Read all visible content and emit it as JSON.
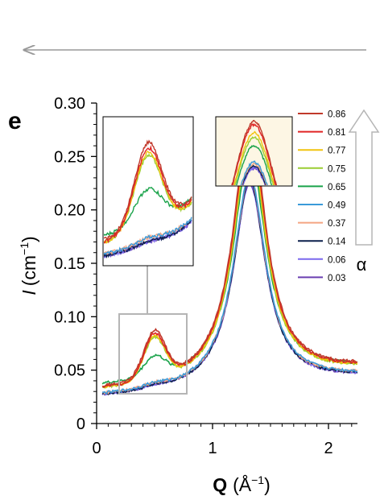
{
  "chart_data": {
    "type": "line",
    "panel_label": "e",
    "xlabel_bold": "Q",
    "xlabel_unit": "(Å",
    "xlabel_unit_exp": "−1",
    "xlabel_unit_close": ")",
    "ylabel_italic": "I",
    "ylabel_unit": "(cm",
    "ylabel_unit_exp": "−1",
    "ylabel_unit_close": ")",
    "xlim": [
      0,
      2.25
    ],
    "ylim": [
      0,
      0.3
    ],
    "xticks": [
      0,
      1,
      2
    ],
    "xtick_labels": [
      "0",
      "1",
      "2"
    ],
    "yticks": [
      0,
      0.05,
      0.1,
      0.15,
      0.2,
      0.25,
      0.3
    ],
    "ytick_labels": [
      "0",
      "0.05",
      "0.10",
      "0.15",
      "0.20",
      "0.25",
      "0.30"
    ],
    "legend_position": "top-right",
    "arrow_label": "α",
    "series": [
      {
        "name": "0.86",
        "color": "#c0392b",
        "hump": 0.048,
        "peak": 0.285,
        "tail": 0.05,
        "low": 0.031
      },
      {
        "name": "0.81",
        "color": "#e02424",
        "hump": 0.046,
        "peak": 0.282,
        "tail": 0.049,
        "low": 0.03
      },
      {
        "name": "0.77",
        "color": "#f1c40f",
        "hump": 0.044,
        "peak": 0.272,
        "tail": 0.048,
        "low": 0.03
      },
      {
        "name": "0.75",
        "color": "#9acd32",
        "hump": 0.043,
        "peak": 0.266,
        "tail": 0.047,
        "low": 0.03
      },
      {
        "name": "0.65",
        "color": "#1aa34a",
        "hump": 0.02,
        "peak": 0.252,
        "tail": 0.042,
        "low": 0.034
      },
      {
        "name": "0.49",
        "color": "#3a9ad9",
        "hump": 0.003,
        "peak": 0.24,
        "tail": 0.04,
        "low": 0.025
      },
      {
        "name": "0.37",
        "color": "#f4a582",
        "hump": 0.003,
        "peak": 0.238,
        "tail": 0.04,
        "low": 0.025
      },
      {
        "name": "0.14",
        "color": "#0b1f4b",
        "hump": 0.002,
        "peak": 0.236,
        "tail": 0.039,
        "low": 0.024
      },
      {
        "name": "0.06",
        "color": "#7b68ee",
        "hump": 0.002,
        "peak": 0.234,
        "tail": 0.038,
        "low": 0.024
      },
      {
        "name": "0.03",
        "color": "#6a3fb0",
        "hump": 0.002,
        "peak": 0.233,
        "tail": 0.038,
        "low": 0.024
      }
    ]
  }
}
